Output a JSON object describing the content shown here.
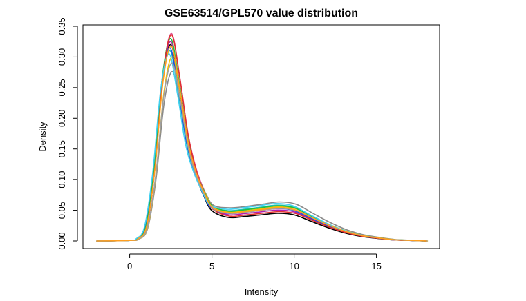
{
  "chart_data": {
    "type": "line",
    "title": "GSE63514/GPL570 value distribution",
    "xlabel": "Intensity",
    "ylabel": "Density",
    "xlim": [
      -2,
      18
    ],
    "ylim": [
      0,
      0.35
    ],
    "x_ticks": [
      "0",
      "5",
      "10",
      "15"
    ],
    "x_tick_values": [
      0,
      5,
      10,
      15
    ],
    "y_ticks": [
      "0.00",
      "0.05",
      "0.10",
      "0.15",
      "0.20",
      "0.25",
      "0.30",
      "0.35"
    ],
    "y_tick_values": [
      0,
      0.05,
      0.1,
      0.15,
      0.2,
      0.25,
      0.3,
      0.35
    ],
    "grid": false,
    "legend": "none",
    "series_template": {
      "x": [
        -2,
        0,
        0.5,
        1.0,
        1.5,
        2.0,
        2.5,
        3.0,
        3.5,
        4.0,
        4.5,
        5.0,
        6.0,
        7.0,
        8.0,
        9.0,
        10.0,
        11.0,
        12.0,
        13.0,
        14.0,
        15.0,
        16.0,
        17.0,
        18.0
      ],
      "y": [
        0,
        0.001,
        0.004,
        0.025,
        0.12,
        0.27,
        0.33,
        0.26,
        0.17,
        0.115,
        0.08,
        0.055,
        0.045,
        0.047,
        0.05,
        0.053,
        0.05,
        0.038,
        0.026,
        0.016,
        0.009,
        0.005,
        0.002,
        0.001,
        0
      ]
    },
    "series": [
      {
        "color": "#e0508a",
        "peak": 0.338,
        "shift": 0.05,
        "hump": 1.0
      },
      {
        "color": "#000000",
        "peak": 0.32,
        "shift": 0.0,
        "hump": 0.85
      },
      {
        "color": "#8a8a8a",
        "peak": 0.276,
        "shift": 0.1,
        "hump": 1.2
      },
      {
        "color": "#1cc4c4",
        "peak": 0.31,
        "shift": -0.05,
        "hump": 1.1
      },
      {
        "color": "#b020b0",
        "peak": 0.325,
        "shift": 0.0,
        "hump": 0.95
      },
      {
        "color": "#f2c200",
        "peak": 0.3,
        "shift": 0.1,
        "hump": 1.05
      },
      {
        "color": "#2050e0",
        "peak": 0.315,
        "shift": -0.05,
        "hump": 1.0
      },
      {
        "color": "#20c040",
        "peak": 0.33,
        "shift": 0.0,
        "hump": 1.08
      },
      {
        "color": "#e03030",
        "peak": 0.336,
        "shift": 0.05,
        "hump": 0.9
      },
      {
        "color": "#40d0f0",
        "peak": 0.305,
        "shift": -0.1,
        "hump": 1.15
      },
      {
        "color": "#a0a0a0",
        "peak": 0.29,
        "shift": 0.08,
        "hump": 1.0
      },
      {
        "color": "#ff9f20",
        "peak": 0.318,
        "shift": 0.03,
        "hump": 1.02
      }
    ]
  }
}
